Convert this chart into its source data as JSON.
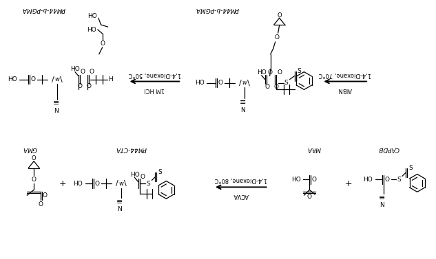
{
  "bg": "#ffffff",
  "fw": 6.33,
  "fh": 3.77,
  "dpi": 100,
  "labels": {
    "top_left": "PM44-b-PGMA",
    "top_center": "PM44-b-PGMA",
    "arrow1_top": "1,4-Dioxane, 50°C",
    "arrow1_bot": "1M HCl",
    "arrow2_top": "1,4-Dioxane, 70°C",
    "arrow2_bot": "AIBN",
    "bot_gma": "GMA",
    "bot_cta": "PM44-CTA",
    "bot_maa": "MAA",
    "bot_capdb": "CAPDB",
    "arrow3_top": "1,4-Dioxane, 80°C",
    "arrow3_bot": "ACVA"
  }
}
